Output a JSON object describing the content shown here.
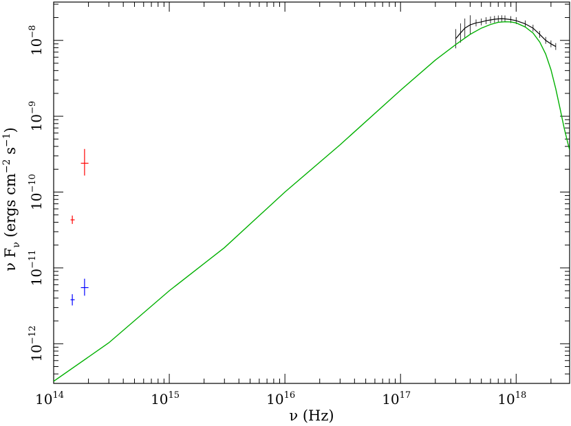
{
  "chart_data": {
    "type": "scatter",
    "title": "",
    "xlabel": "ν (Hz)",
    "ylabel": "ν F_ν (ergs cm^-2 s^-1)",
    "xscale": "log",
    "yscale": "log",
    "xlim": [
      100000000000000.0,
      2.9e+18
    ],
    "ylim": [
      3e-13,
      3.2e-08
    ],
    "grid": false,
    "x_ticks": [
      {
        "base": "10",
        "exp": "14"
      },
      {
        "base": "10",
        "exp": "15"
      },
      {
        "base": "10",
        "exp": "16"
      },
      {
        "base": "10",
        "exp": "17"
      },
      {
        "base": "10",
        "exp": "18"
      }
    ],
    "y_ticks": [
      {
        "base": "10",
        "exp": "−12"
      },
      {
        "base": "10",
        "exp": "−11"
      },
      {
        "base": "10",
        "exp": "−10"
      },
      {
        "base": "10",
        "exp": "−9"
      },
      {
        "base": "10",
        "exp": "−8"
      }
    ],
    "series": [
      {
        "color": "#ff0000",
        "points": [
          {
            "x": 145000000000000.0,
            "y": 4.3e-11,
            "ylo": 3.8e-11,
            "yhi": 4.9e-11,
            "xlo": 140000000000000.0,
            "xhi": 152000000000000.0
          },
          {
            "x": 185000000000000.0,
            "y": 2.4e-10,
            "ylo": 1.65e-10,
            "yhi": 3.7e-10,
            "xlo": 172000000000000.0,
            "xhi": 200000000000000.0
          }
        ]
      },
      {
        "color": "#0000ff",
        "points": [
          {
            "x": 145000000000000.0,
            "y": 3.8e-12,
            "ylo": 3.2e-12,
            "yhi": 4.5e-12,
            "xlo": 140000000000000.0,
            "xhi": 152000000000000.0
          },
          {
            "x": 185000000000000.0,
            "y": 5.5e-12,
            "ylo": 4.3e-12,
            "yhi": 7.2e-12,
            "xlo": 172000000000000.0,
            "xhi": 200000000000000.0
          }
        ]
      },
      {
        "color": "#000000",
        "type": "spectrum",
        "x": [
          3e+17,
          3.3e+17,
          3.6e+17,
          4e+17,
          4.5e+17,
          5e+17,
          5.5e+17,
          6e+17,
          6.5e+17,
          7e+17,
          7.5e+17,
          8e+17,
          9e+17,
          1e+18,
          1.2e+18,
          1.4e+18,
          1.6e+18,
          1.8e+18,
          2e+18,
          2.2e+18
        ],
        "y": [
          1.05e-08,
          1.25e-08,
          1.45e-08,
          1.6e-08,
          1.7e-08,
          1.75e-08,
          1.82e-08,
          1.86e-08,
          1.9e-08,
          1.92e-08,
          1.93e-08,
          1.92e-08,
          1.88e-08,
          1.82e-08,
          1.65e-08,
          1.45e-08,
          1.2e-08,
          1e-08,
          9e-09,
          8.3e-09
        ]
      },
      {
        "color": "#00b000",
        "type": "model",
        "x": [
          100000000000000.0,
          300000000000000.0,
          1000000000000000.0,
          3000000000000000.0,
          1e+16,
          3e+16,
          1e+17,
          2e+17,
          3e+17,
          4e+17,
          5e+17,
          6e+17,
          7e+17,
          8e+17,
          9e+17,
          1e+18,
          1.2e+18,
          1.4e+18,
          1.6e+18,
          1.8e+18,
          2e+18,
          2.2e+18,
          2.4e+18,
          2.6e+18,
          2.8e+18,
          2.9e+18
        ],
        "y": [
          3.2e-13,
          1.03e-12,
          5e-12,
          1.85e-11,
          1e-10,
          4.2e-10,
          2.2e-09,
          5.5e-09,
          8.8e-09,
          1.2e-08,
          1.45e-08,
          1.62e-08,
          1.73e-08,
          1.76e-08,
          1.75e-08,
          1.7e-08,
          1.5e-08,
          1.25e-08,
          9.5e-09,
          6.6e-09,
          4.1e-09,
          2.3e-09,
          1.25e-09,
          7e-10,
          4.4e-10,
          3.6e-10
        ]
      }
    ]
  }
}
